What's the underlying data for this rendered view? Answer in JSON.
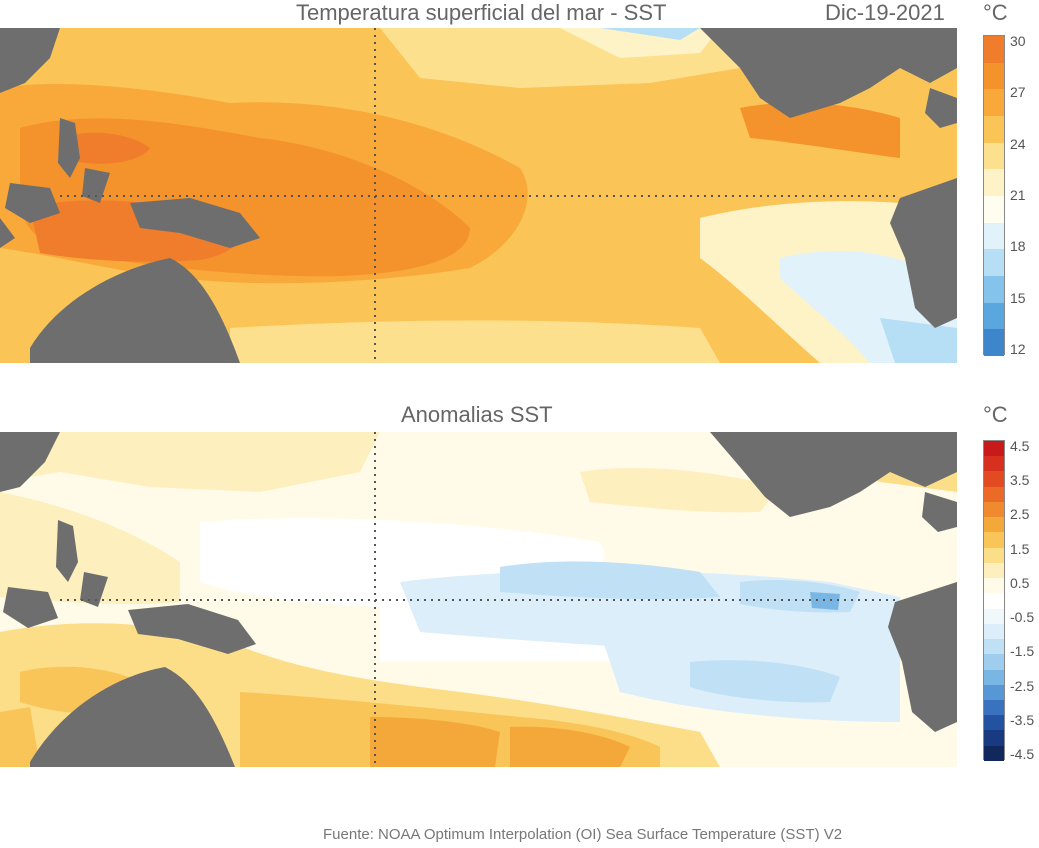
{
  "top_panel": {
    "title": "Temperatura superficial del mar - SST",
    "date": "Dic-19-2021",
    "unit": "°C",
    "colorbar_ticks": [
      "30",
      "27",
      "24",
      "21",
      "18",
      "15",
      "12"
    ],
    "colorbar_colors": [
      "#ef7d2c",
      "#f4922c",
      "#f8a93a",
      "#fbc457",
      "#fde08e",
      "#fef3c7",
      "#fffdf0",
      "#e2f2fa",
      "#b6def4",
      "#84c4ec",
      "#5aa6de",
      "#3d86cc"
    ]
  },
  "bottom_panel": {
    "title": "Anomalias SST",
    "unit": "°C",
    "colorbar_ticks": [
      "4.5",
      "3.5",
      "2.5",
      "1.5",
      "0.5",
      "-0.5",
      "-1.5",
      "-2.5",
      "-3.5",
      "-4.5"
    ],
    "colorbar_colors": [
      "#c81a1a",
      "#d8301f",
      "#e24a22",
      "#ea6a26",
      "#f08a2e",
      "#f5a83a",
      "#f9c458",
      "#fcdd88",
      "#fdefbe",
      "#fffbe8",
      "#ffffff",
      "#f1f8fc",
      "#dceefa",
      "#c0e0f5",
      "#9fcdee",
      "#7ab6e4",
      "#5897d6",
      "#3a72c0",
      "#2353a0",
      "#173a80",
      "#10285c"
    ]
  },
  "footer": {
    "source": "Fuente: NOAA Optimum Interpolation (OI) Sea Surface Temperature (SST) V2"
  }
}
